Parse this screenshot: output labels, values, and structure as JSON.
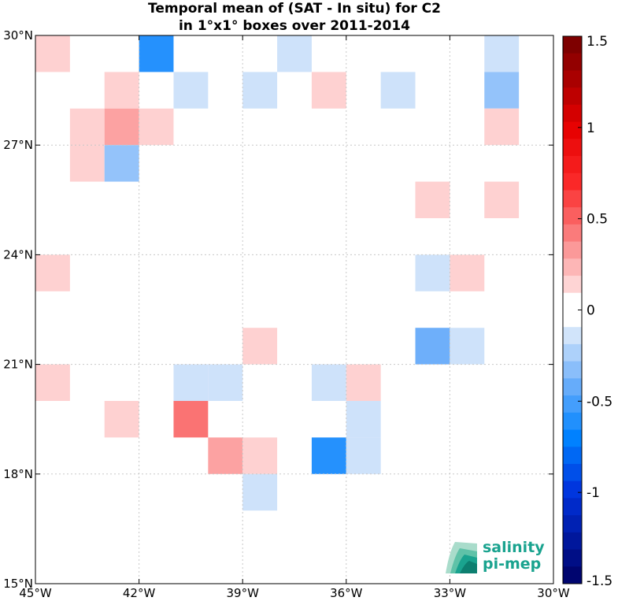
{
  "chart_data": {
    "type": "heatmap",
    "title": "Temporal mean of (SAT - In situ) for C2",
    "subtitle": "in 1°x1° boxes over 2011-2014",
    "x_ticks": [
      {
        "value": -45,
        "label": "45°W"
      },
      {
        "value": -42,
        "label": "42°W"
      },
      {
        "value": -39,
        "label": "39°W"
      },
      {
        "value": -36,
        "label": "36°W"
      },
      {
        "value": -33,
        "label": "33°W"
      },
      {
        "value": -30,
        "label": "30°W"
      }
    ],
    "y_ticks": [
      {
        "value": 15,
        "label": "15°N"
      },
      {
        "value": 18,
        "label": "18°N"
      },
      {
        "value": 21,
        "label": "21°N"
      },
      {
        "value": 24,
        "label": "24°N"
      },
      {
        "value": 27,
        "label": "27°N"
      },
      {
        "value": 30,
        "label": "30°N"
      }
    ],
    "xlim": [
      -45,
      -30
    ],
    "ylim": [
      15,
      30
    ],
    "grid": true,
    "colorbar": {
      "min": -1.5,
      "max": 1.5,
      "ticks": [
        {
          "value": 1.5,
          "label": "1.5"
        },
        {
          "value": 1,
          "label": "1"
        },
        {
          "value": 0.5,
          "label": "0.5"
        },
        {
          "value": 0,
          "label": "0"
        },
        {
          "value": -0.5,
          "label": "-0.5"
        },
        {
          "value": -1,
          "label": "-1"
        },
        {
          "value": -1.5,
          "label": "-1.5"
        }
      ]
    },
    "cells": [
      {
        "lon": -45,
        "lat": 29,
        "value": 0.15
      },
      {
        "lon": -42,
        "lat": 29,
        "value": -0.6
      },
      {
        "lon": -38,
        "lat": 29,
        "value": -0.15
      },
      {
        "lon": -32,
        "lat": 29,
        "value": -0.15
      },
      {
        "lon": -43,
        "lat": 28,
        "value": 0.15
      },
      {
        "lon": -41,
        "lat": 28,
        "value": -0.15
      },
      {
        "lon": -39,
        "lat": 28,
        "value": -0.15
      },
      {
        "lon": -37,
        "lat": 28,
        "value": 0.15
      },
      {
        "lon": -35,
        "lat": 28,
        "value": -0.15
      },
      {
        "lon": -32,
        "lat": 28,
        "value": -0.3
      },
      {
        "lon": -44,
        "lat": 27,
        "value": 0.15
      },
      {
        "lon": -43,
        "lat": 27,
        "value": 0.3
      },
      {
        "lon": -42,
        "lat": 27,
        "value": 0.15
      },
      {
        "lon": -32,
        "lat": 27,
        "value": 0.15
      },
      {
        "lon": -44,
        "lat": 26,
        "value": 0.15
      },
      {
        "lon": -43,
        "lat": 26,
        "value": -0.3
      },
      {
        "lon": -34,
        "lat": 25,
        "value": 0.15
      },
      {
        "lon": -32,
        "lat": 25,
        "value": 0.15
      },
      {
        "lon": -45,
        "lat": 23,
        "value": 0.15
      },
      {
        "lon": -34,
        "lat": 23,
        "value": -0.15
      },
      {
        "lon": -33,
        "lat": 23,
        "value": 0.15
      },
      {
        "lon": -39,
        "lat": 21,
        "value": 0.15
      },
      {
        "lon": -34,
        "lat": 21,
        "value": -0.4
      },
      {
        "lon": -33,
        "lat": 21,
        "value": -0.15
      },
      {
        "lon": -45,
        "lat": 20,
        "value": 0.15
      },
      {
        "lon": -41,
        "lat": 20,
        "value": -0.15
      },
      {
        "lon": -40,
        "lat": 20,
        "value": -0.15
      },
      {
        "lon": -37,
        "lat": 20,
        "value": -0.15
      },
      {
        "lon": -36,
        "lat": 20,
        "value": 0.15
      },
      {
        "lon": -43,
        "lat": 19,
        "value": 0.15
      },
      {
        "lon": -41,
        "lat": 19,
        "value": 0.45
      },
      {
        "lon": -36,
        "lat": 19,
        "value": -0.15
      },
      {
        "lon": -40,
        "lat": 18,
        "value": 0.3
      },
      {
        "lon": -39,
        "lat": 18,
        "value": 0.15
      },
      {
        "lon": -37,
        "lat": 18,
        "value": -0.6
      },
      {
        "lon": -36,
        "lat": 18,
        "value": -0.15
      },
      {
        "lon": -39,
        "lat": 17,
        "value": -0.15
      }
    ]
  },
  "logo": {
    "line1": "salinity",
    "line2": "pi-mep"
  }
}
